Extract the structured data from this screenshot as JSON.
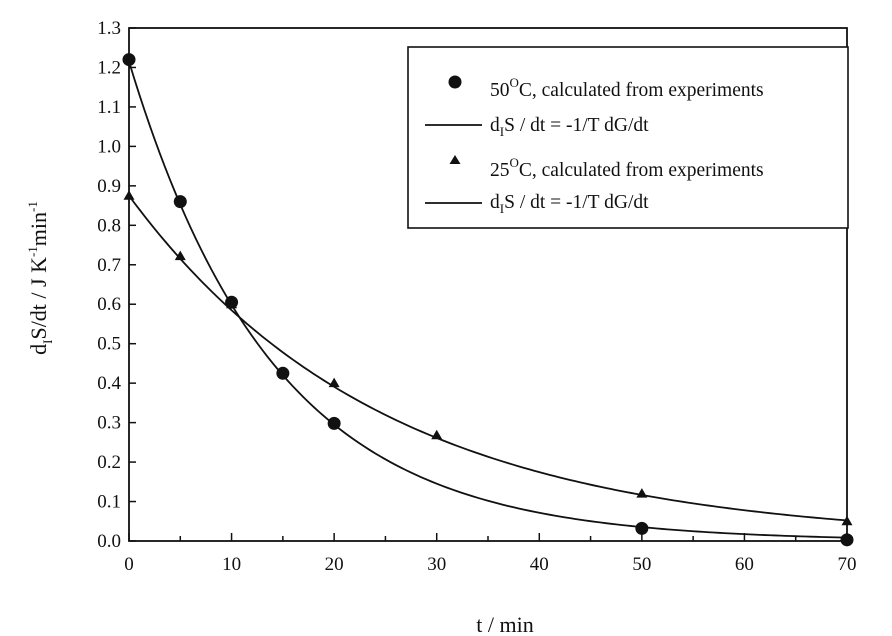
{
  "chart_data": {
    "type": "scatter",
    "title": "",
    "xlabel": "t / min",
    "ylabel": {
      "main": "d",
      "sub1": "I",
      "mid": "S/dt / J K",
      "sup1": "-1",
      "mid2": "min",
      "sup2": "-1"
    },
    "xlim": [
      0,
      70
    ],
    "ylim": [
      0.0,
      1.3
    ],
    "x_ticks": [
      "0",
      "10",
      "20",
      "30",
      "40",
      "50",
      "60",
      "70"
    ],
    "y_ticks": [
      "0.0",
      "0.1",
      "0.2",
      "0.3",
      "0.4",
      "0.5",
      "0.6",
      "0.7",
      "0.8",
      "0.9",
      "1.0",
      "1.1",
      "1.2",
      "1.3"
    ],
    "grid": false,
    "legend_position": "top-right",
    "series": [
      {
        "name": "50°C, calculated from experiments",
        "label_parts": {
          "num": "50",
          "sup": "O",
          "rest": "C, calculated from experiments"
        },
        "marker": "circle",
        "x": [
          0,
          5,
          10,
          15,
          20,
          50,
          70
        ],
        "y": [
          1.22,
          0.86,
          0.605,
          0.425,
          0.298,
          0.032,
          0.003
        ]
      },
      {
        "name": "dIS / dt = -1/T dG/dt",
        "label_parts": {
          "pre": "d",
          "sub": "I",
          "rest": "S / dt = -1/T dG/dt"
        },
        "marker": "line",
        "fit": {
          "a": 1.215,
          "k": 0.0708,
          "x0": 0,
          "x1": 70
        }
      },
      {
        "name": "25°C, calculated from experiments",
        "label_parts": {
          "num": "25",
          "sup": "O",
          "rest": "C, calculated from experiments"
        },
        "marker": "triangle",
        "x": [
          0,
          5,
          10,
          20,
          30,
          50,
          70
        ],
        "y": [
          0.875,
          0.722,
          0.6,
          0.4,
          0.268,
          0.12,
          0.05
        ]
      },
      {
        "name": "dIS / dt = -1/T dG/dt",
        "label_parts": {
          "pre": "d",
          "sub": "I",
          "rest": "S / dt = -1/T dG/dt"
        },
        "marker": "line",
        "fit": {
          "a": 0.875,
          "k": 0.0403,
          "x0": 0,
          "x1": 70
        }
      }
    ]
  }
}
